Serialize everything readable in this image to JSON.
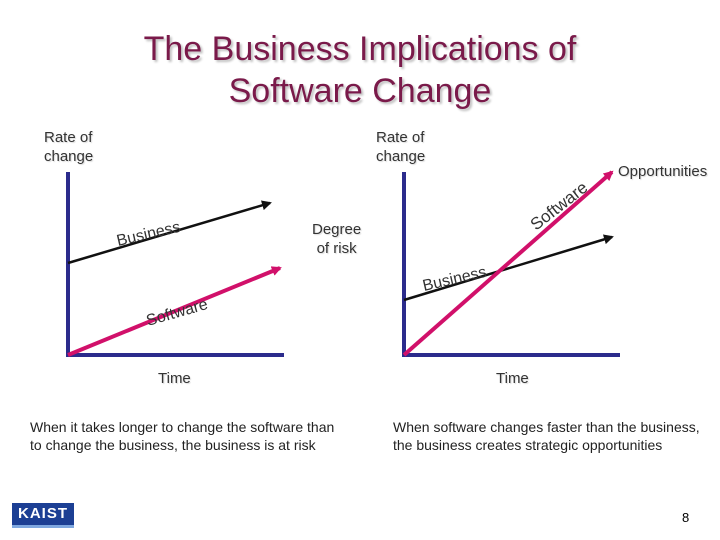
{
  "slide": {
    "title_line1": "The Business Implications of",
    "title_line2": "Software Change",
    "page_number": "8",
    "logo_text": "KAIST"
  },
  "left_chart": {
    "y_axis_label_line1": "Rate of",
    "y_axis_label_line2": "change",
    "x_axis_label": "Time",
    "business_label": "Business",
    "software_label": "Software",
    "gap_label_line1": "Degree",
    "gap_label_line2": "of risk",
    "caption": "When it takes longer to change the software than to change the business, the business is at risk"
  },
  "right_chart": {
    "y_axis_label_line1": "Rate of",
    "y_axis_label_line2": "change",
    "x_axis_label": "Time",
    "business_label": "Business",
    "software_label": "Software",
    "gap_label": "Opportunities",
    "caption": "When software changes faster than the business, the business creates strategic opportunities"
  },
  "colors": {
    "title": "#7a1a4a",
    "axis": "#2b2b8c",
    "business_line": "#111111",
    "software_line": "#d1106a"
  }
}
